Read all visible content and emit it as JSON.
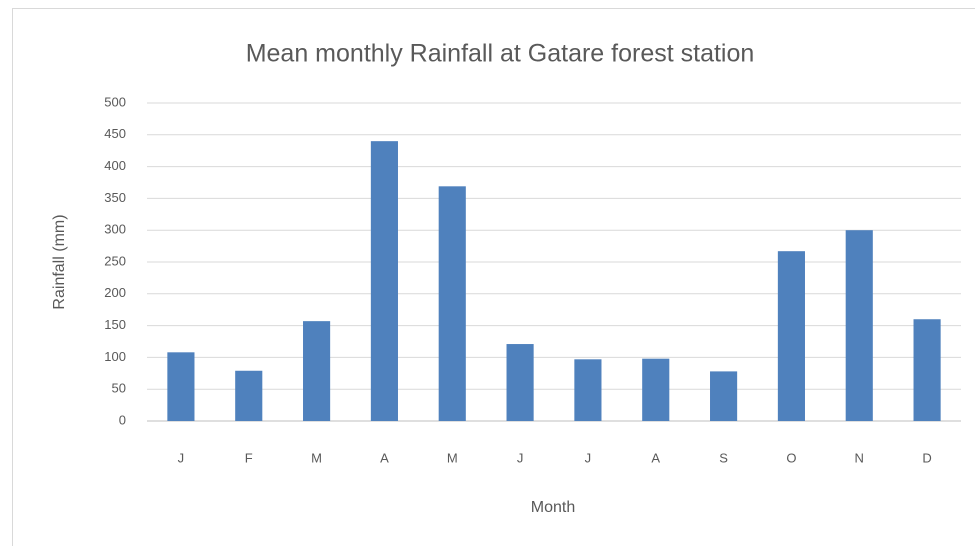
{
  "chart_data": {
    "type": "bar",
    "title": "Mean monthly Rainfall at Gatare forest station",
    "x_label": "Month",
    "y_label": "Rainfall (mm)",
    "categories": [
      "J",
      "F",
      "M",
      "A",
      "M",
      "J",
      "J",
      "A",
      "S",
      "O",
      "N",
      "D"
    ],
    "values": [
      108,
      79,
      157,
      440,
      369,
      121,
      97,
      98,
      78,
      267,
      300,
      160
    ],
    "color": "#4f81bd",
    "ylim": [
      0,
      500
    ],
    "yticks": [
      0,
      50,
      100,
      150,
      200,
      250,
      300,
      350,
      400,
      450,
      500
    ],
    "grid": true
  }
}
